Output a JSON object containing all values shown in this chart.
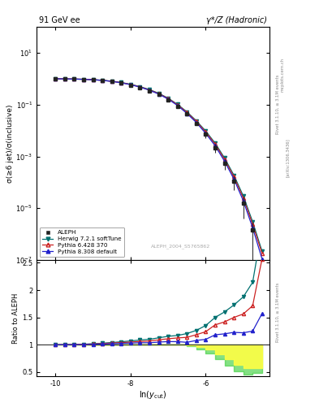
{
  "title_left": "91 GeV ee",
  "title_right": "γ*/Z (Hadronic)",
  "ylabel_main": "σ(≥6 jet)/σ(inclusive)",
  "ylabel_ratio": "Ratio to ALEPH",
  "xlabel": "ln(y_{cut})",
  "annotation": "ALEPH_2004_S5765862",
  "right_label1": "Rivet 3.1.10, ≥ 3.1M events",
  "right_label2": "[arXiv:1306.3436]",
  "right_label3": "mcplots.cern.ch",
  "xlim": [
    -10.5,
    -4.3
  ],
  "ylim_main": [
    1e-07,
    100.0
  ],
  "ylim_ratio": [
    0.42,
    2.55
  ],
  "x_ticks": [
    -10,
    -8,
    -6
  ],
  "background_color": "#ffffff",
  "green_band_color": "#33cc33",
  "yellow_band_color": "#ffff44",
  "aleph_color": "#222222",
  "herwig_color": "#007070",
  "pythia6_color": "#cc2222",
  "pythia8_color": "#2222cc",
  "aleph_x": [
    -10.0,
    -9.75,
    -9.5,
    -9.25,
    -9.0,
    -8.75,
    -8.5,
    -8.25,
    -8.0,
    -7.75,
    -7.5,
    -7.25,
    -7.0,
    -6.75,
    -6.5,
    -6.25,
    -6.0,
    -5.75,
    -5.5,
    -5.25,
    -5.0,
    -4.75,
    -4.5
  ],
  "aleph_y": [
    1.0,
    0.99,
    0.975,
    0.95,
    0.91,
    0.855,
    0.78,
    0.685,
    0.575,
    0.46,
    0.35,
    0.245,
    0.155,
    0.088,
    0.044,
    0.019,
    0.0071,
    0.0022,
    0.00055,
    0.00011,
    1.6e-05,
    1.4e-06,
    7e-08
  ],
  "aleph_yerr_lo": [
    0.005,
    0.005,
    0.005,
    0.006,
    0.007,
    0.007,
    0.008,
    0.008,
    0.009,
    0.009,
    0.009,
    0.009,
    0.008,
    0.007,
    0.005,
    0.003,
    0.002,
    0.0008,
    0.00025,
    6e-05,
    1.2e-05,
    1.3e-06,
    9e-09
  ],
  "aleph_yerr_hi": [
    0.005,
    0.005,
    0.005,
    0.006,
    0.007,
    0.007,
    0.008,
    0.008,
    0.009,
    0.009,
    0.009,
    0.009,
    0.008,
    0.007,
    0.005,
    0.003,
    0.002,
    0.0008,
    0.00025,
    6e-05,
    1.2e-05,
    1.3e-06,
    9e-09
  ],
  "herwig_x": [
    -10.0,
    -9.75,
    -9.5,
    -9.25,
    -9.0,
    -8.75,
    -8.5,
    -8.25,
    -8.0,
    -7.75,
    -7.5,
    -7.25,
    -7.0,
    -6.75,
    -6.5,
    -6.25,
    -6.0,
    -5.75,
    -5.5,
    -5.25,
    -5.0,
    -4.75,
    -4.5
  ],
  "herwig_y": [
    1.0,
    0.992,
    0.979,
    0.96,
    0.928,
    0.88,
    0.812,
    0.723,
    0.615,
    0.5,
    0.385,
    0.276,
    0.179,
    0.103,
    0.053,
    0.024,
    0.0096,
    0.0033,
    0.00088,
    0.00019,
    3e-05,
    3e-06,
    2.2e-07
  ],
  "pythia6_x": [
    -10.0,
    -9.75,
    -9.5,
    -9.25,
    -9.0,
    -8.75,
    -8.5,
    -8.25,
    -8.0,
    -7.75,
    -7.5,
    -7.25,
    -7.0,
    -6.75,
    -6.5,
    -6.25,
    -6.0,
    -5.75,
    -5.5,
    -5.25,
    -5.0,
    -4.75,
    -4.5
  ],
  "pythia6_y": [
    1.0,
    0.991,
    0.978,
    0.958,
    0.924,
    0.874,
    0.803,
    0.713,
    0.603,
    0.488,
    0.374,
    0.267,
    0.172,
    0.099,
    0.05,
    0.0225,
    0.0088,
    0.003,
    0.00078,
    0.000165,
    2.5e-05,
    2.4e-06,
    1.8e-07
  ],
  "pythia8_x": [
    -10.0,
    -9.75,
    -9.5,
    -9.25,
    -9.0,
    -8.75,
    -8.5,
    -8.25,
    -8.0,
    -7.75,
    -7.5,
    -7.25,
    -7.0,
    -6.75,
    -6.5,
    -6.25,
    -6.0,
    -5.75,
    -5.5,
    -5.25,
    -5.0,
    -4.75,
    -4.5
  ],
  "pythia8_y": [
    1.0,
    0.99,
    0.976,
    0.954,
    0.919,
    0.867,
    0.795,
    0.703,
    0.592,
    0.477,
    0.363,
    0.257,
    0.164,
    0.093,
    0.046,
    0.0205,
    0.0078,
    0.0026,
    0.00066,
    0.000135,
    1.95e-05,
    1.75e-06,
    1.1e-07
  ],
  "herwig_ratio": [
    1.0,
    1.002,
    1.004,
    1.01,
    1.019,
    1.029,
    1.041,
    1.055,
    1.07,
    1.087,
    1.1,
    1.127,
    1.155,
    1.17,
    1.205,
    1.263,
    1.352,
    1.5,
    1.6,
    1.727,
    1.875,
    2.143,
    3.143
  ],
  "pythia6_ratio": [
    1.0,
    1.001,
    1.003,
    1.008,
    1.015,
    1.022,
    1.031,
    1.041,
    1.049,
    1.061,
    1.069,
    1.09,
    1.11,
    1.125,
    1.136,
    1.184,
    1.239,
    1.364,
    1.418,
    1.5,
    1.563,
    1.714,
    2.571
  ],
  "pythia8_ratio": [
    1.0,
    1.001,
    1.001,
    1.004,
    1.009,
    1.014,
    1.019,
    1.026,
    1.03,
    1.037,
    1.037,
    1.049,
    1.058,
    1.057,
    1.045,
    1.079,
    1.099,
    1.182,
    1.2,
    1.227,
    1.219,
    1.25,
    1.571
  ],
  "band_x": [
    -10.0,
    -9.75,
    -9.5,
    -9.25,
    -9.0,
    -8.75,
    -8.5,
    -8.25,
    -8.0,
    -7.75,
    -7.5,
    -7.25,
    -7.0,
    -6.75,
    -6.5,
    -6.25,
    -6.0,
    -5.75,
    -5.5,
    -5.25,
    -5.0,
    -4.75,
    -4.5
  ],
  "green_lo": [
    1.0,
    1.0,
    1.0,
    1.0,
    1.0,
    1.0,
    1.0,
    1.0,
    1.0,
    1.0,
    1.0,
    1.0,
    1.0,
    1.0,
    0.97,
    0.92,
    0.84,
    0.74,
    0.62,
    0.51,
    0.46,
    0.48,
    0.5
  ],
  "green_hi": [
    1.0,
    1.0,
    1.0,
    1.0,
    1.0,
    1.0,
    1.0,
    1.0,
    1.0,
    1.0,
    1.0,
    1.0,
    1.0,
    1.0,
    1.0,
    1.0,
    1.0,
    1.0,
    1.0,
    1.0,
    1.0,
    1.0,
    1.0
  ],
  "yellow_lo": [
    1.0,
    1.0,
    1.0,
    1.0,
    1.0,
    1.0,
    1.0,
    1.0,
    1.0,
    1.0,
    1.0,
    1.0,
    1.0,
    1.0,
    0.985,
    0.96,
    0.91,
    0.83,
    0.73,
    0.63,
    0.57,
    0.58,
    0.6
  ],
  "yellow_hi": [
    1.0,
    1.0,
    1.0,
    1.0,
    1.0,
    1.0,
    1.0,
    1.0,
    1.0,
    1.0,
    1.0,
    1.0,
    1.0,
    1.0,
    1.0,
    1.0,
    1.0,
    1.0,
    1.0,
    1.0,
    1.0,
    1.0,
    1.0
  ]
}
